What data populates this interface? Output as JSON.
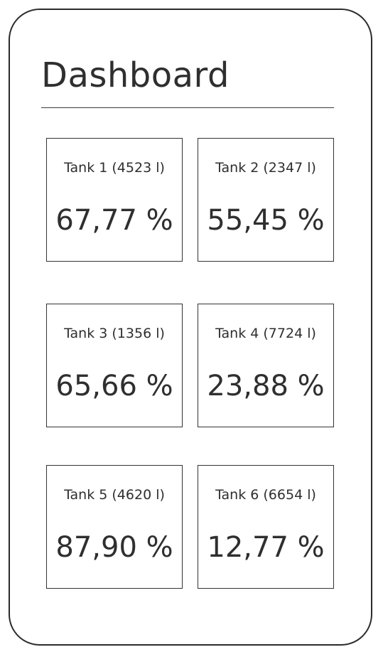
{
  "app": {
    "title": "Dashboard"
  },
  "tanks": [
    {
      "label": "Tank 1 (4523 l)",
      "value": "67,77 %"
    },
    {
      "label": "Tank 2 (2347 l)",
      "value": "55,45 %"
    },
    {
      "label": "Tank 3 (1356 l)",
      "value": "65,66 %"
    },
    {
      "label": "Tank 4 (7724 l)",
      "value": "23,88 %"
    },
    {
      "label": "Tank 5 (4620 l)",
      "value": "87,90 %"
    },
    {
      "label": "Tank 6 (6654 l)",
      "value": "12,77 %"
    }
  ],
  "colors": {
    "stroke": "#2b2b2b",
    "text": "#2f2f2f",
    "background": "#ffffff"
  }
}
